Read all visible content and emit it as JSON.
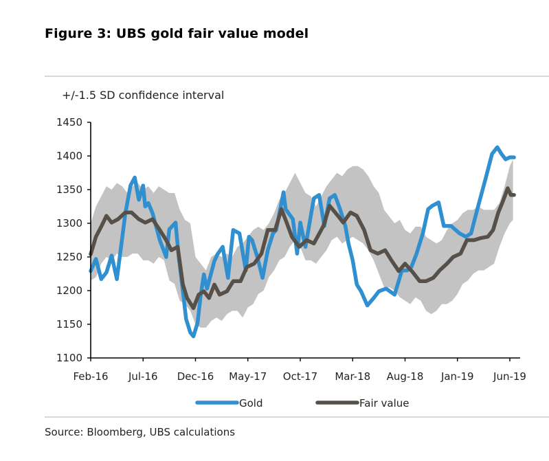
{
  "figure": {
    "title": "Figure 3: UBS gold fair value model",
    "source": "Source:  Bloomberg, UBS calculations"
  },
  "chart_data": {
    "type": "line",
    "title": "Figure 3: UBS gold fair value model",
    "subtitle": "+/-1.5 SD confidence interval",
    "xlabel": "",
    "ylabel": "",
    "ylim": [
      1100,
      1450
    ],
    "yticks": [
      1100,
      1150,
      1200,
      1250,
      1300,
      1350,
      1400,
      1450
    ],
    "xlim_months": [
      0,
      40.8
    ],
    "x_unit": "months since Feb-2016",
    "xticks": [
      {
        "month": 0,
        "label": "Feb-16"
      },
      {
        "month": 5,
        "label": "Jul-16"
      },
      {
        "month": 10,
        "label": "Dec-16"
      },
      {
        "month": 15,
        "label": "May-17"
      },
      {
        "month": 20,
        "label": "Oct-17"
      },
      {
        "month": 25,
        "label": "Mar-18"
      },
      {
        "month": 30,
        "label": "Aug-18"
      },
      {
        "month": 35,
        "label": "Jan-19"
      },
      {
        "month": 40,
        "label": "Jun-19"
      }
    ],
    "grid": false,
    "legend": {
      "position": "bottom",
      "entries": [
        {
          "name": "Gold",
          "color": "#2f8fcf"
        },
        {
          "name": "Fair value",
          "color": "#575048"
        }
      ]
    },
    "band": {
      "name": "+/-1.5 SD confidence interval",
      "color": "#c3c3c3",
      "x": [
        0,
        0.5,
        1,
        1.5,
        2,
        2.5,
        3,
        3.5,
        4,
        4.5,
        5,
        5.5,
        6,
        6.5,
        7,
        7.5,
        8,
        8.5,
        9,
        9.5,
        10,
        10.5,
        11,
        11.5,
        12,
        12.5,
        13,
        13.5,
        14,
        14.5,
        15,
        15.5,
        16,
        16.5,
        17,
        17.5,
        18,
        18.5,
        19,
        19.5,
        20,
        20.5,
        21,
        21.5,
        22,
        22.5,
        23,
        23.5,
        24,
        24.5,
        25,
        25.5,
        26,
        26.5,
        27,
        27.5,
        28,
        28.5,
        29,
        29.5,
        30,
        30.5,
        31,
        31.5,
        32,
        32.5,
        33,
        33.5,
        34,
        34.5,
        35,
        35.5,
        36,
        36.5,
        37,
        37.5,
        38,
        38.5,
        39,
        39.5,
        40,
        40.3
      ],
      "upper": [
        1300,
        1325,
        1340,
        1355,
        1350,
        1360,
        1355,
        1345,
        1355,
        1360,
        1350,
        1355,
        1345,
        1355,
        1350,
        1345,
        1345,
        1320,
        1305,
        1300,
        1250,
        1240,
        1230,
        1250,
        1255,
        1250,
        1255,
        1250,
        1265,
        1270,
        1280,
        1290,
        1295,
        1290,
        1300,
        1315,
        1335,
        1345,
        1360,
        1375,
        1360,
        1345,
        1340,
        1325,
        1340,
        1355,
        1365,
        1375,
        1370,
        1380,
        1385,
        1385,
        1380,
        1370,
        1355,
        1345,
        1320,
        1310,
        1300,
        1305,
        1290,
        1285,
        1295,
        1295,
        1280,
        1275,
        1270,
        1275,
        1290,
        1300,
        1305,
        1315,
        1320,
        1320,
        1325,
        1320,
        1320,
        1320,
        1330,
        1355,
        1385,
        1395
      ],
      "lower": [
        1215,
        1220,
        1240,
        1250,
        1245,
        1255,
        1250,
        1250,
        1255,
        1255,
        1245,
        1245,
        1240,
        1250,
        1245,
        1215,
        1210,
        1185,
        1180,
        1170,
        1150,
        1145,
        1145,
        1155,
        1160,
        1155,
        1165,
        1170,
        1170,
        1160,
        1175,
        1180,
        1195,
        1200,
        1220,
        1230,
        1245,
        1250,
        1265,
        1275,
        1265,
        1245,
        1245,
        1240,
        1250,
        1260,
        1275,
        1280,
        1270,
        1275,
        1280,
        1275,
        1270,
        1260,
        1245,
        1225,
        1205,
        1205,
        1200,
        1190,
        1185,
        1180,
        1190,
        1185,
        1170,
        1165,
        1170,
        1180,
        1180,
        1185,
        1195,
        1210,
        1215,
        1225,
        1230,
        1230,
        1235,
        1240,
        1265,
        1285,
        1300,
        1305
      ]
    },
    "series": [
      {
        "name": "Gold",
        "color": "#2f8fcf",
        "x": [
          0,
          0.5,
          1,
          1.5,
          2,
          2.5,
          3,
          3.3,
          3.8,
          4.2,
          4.6,
          5.0,
          5.2,
          5.5,
          5.9,
          6.6,
          7.2,
          7.5,
          8.1,
          8.4,
          8.8,
          9.1,
          9.5,
          9.8,
          10.2,
          10.5,
          10.8,
          11.1,
          11.8,
          12.1,
          12.6,
          13.1,
          13.6,
          14.2,
          14.8,
          15.1,
          15.4,
          15.9,
          16.4,
          16.9,
          17.4,
          17.7,
          18.4,
          18.6,
          19.3,
          19.7,
          20.0,
          20.5,
          21.0,
          21.3,
          21.8,
          22.3,
          22.8,
          23.3,
          23.8,
          24.3,
          24.6,
          25.0,
          25.4,
          25.8,
          26.4,
          27.0,
          27.5,
          28.2,
          29.0,
          29.7,
          30.2,
          30.6,
          31.1,
          31.7,
          32.2,
          32.6,
          33.2,
          33.7,
          34.4,
          35.2,
          35.8,
          36.3,
          36.9,
          37.7,
          38.3,
          38.8,
          39.2,
          39.6,
          40.0,
          40.4
        ],
        "values": [
          1229,
          1247,
          1217,
          1227,
          1252,
          1217,
          1278,
          1314,
          1356,
          1368,
          1335,
          1356,
          1325,
          1330,
          1315,
          1275,
          1250,
          1291,
          1301,
          1250,
          1199,
          1158,
          1138,
          1132,
          1152,
          1193,
          1224,
          1203,
          1244,
          1254,
          1265,
          1219,
          1290,
          1285,
          1230,
          1280,
          1275,
          1250,
          1219,
          1260,
          1285,
          1290,
          1346,
          1321,
          1306,
          1255,
          1301,
          1265,
          1311,
          1337,
          1342,
          1296,
          1337,
          1342,
          1321,
          1296,
          1270,
          1245,
          1209,
          1199,
          1178,
          1189,
          1199,
          1203,
          1194,
          1230,
          1230,
          1235,
          1255,
          1285,
          1321,
          1326,
          1331,
          1296,
          1296,
          1285,
          1280,
          1285,
          1321,
          1367,
          1403,
          1413,
          1403,
          1395,
          1398,
          1398
        ]
      },
      {
        "name": "Fair value",
        "color": "#575048",
        "x": [
          0,
          0.5,
          1,
          1.5,
          2,
          2.6,
          3.3,
          3.9,
          4.6,
          5.2,
          5.9,
          6.6,
          7.2,
          7.7,
          8.3,
          8.8,
          9.2,
          9.8,
          10.3,
          10.8,
          11.3,
          11.8,
          12.3,
          13.0,
          13.6,
          14.3,
          14.9,
          15.6,
          16.3,
          16.9,
          17.6,
          18.2,
          18.7,
          19.2,
          19.9,
          20.6,
          21.3,
          22.2,
          22.8,
          23.6,
          24.1,
          24.8,
          25.4,
          26.1,
          26.7,
          27.4,
          28.1,
          28.7,
          29.4,
          30.0,
          30.7,
          31.4,
          32.0,
          32.7,
          33.3,
          34.0,
          34.6,
          35.3,
          35.9,
          36.6,
          37.2,
          37.9,
          38.4,
          38.9,
          39.3,
          39.8,
          40.1,
          40.4
        ],
        "values": [
          1254,
          1280,
          1295,
          1311,
          1301,
          1306,
          1316,
          1316,
          1306,
          1301,
          1306,
          1290,
          1275,
          1260,
          1265,
          1209,
          1189,
          1174,
          1194,
          1199,
          1189,
          1209,
          1194,
          1199,
          1214,
          1214,
          1235,
          1240,
          1255,
          1290,
          1290,
          1321,
          1301,
          1280,
          1265,
          1275,
          1270,
          1296,
          1326,
          1311,
          1301,
          1316,
          1311,
          1290,
          1260,
          1255,
          1260,
          1245,
          1229,
          1240,
          1228,
          1214,
          1214,
          1219,
          1230,
          1240,
          1250,
          1255,
          1275,
          1275,
          1278,
          1280,
          1290,
          1316,
          1331,
          1352,
          1342,
          1342
        ]
      }
    ]
  }
}
